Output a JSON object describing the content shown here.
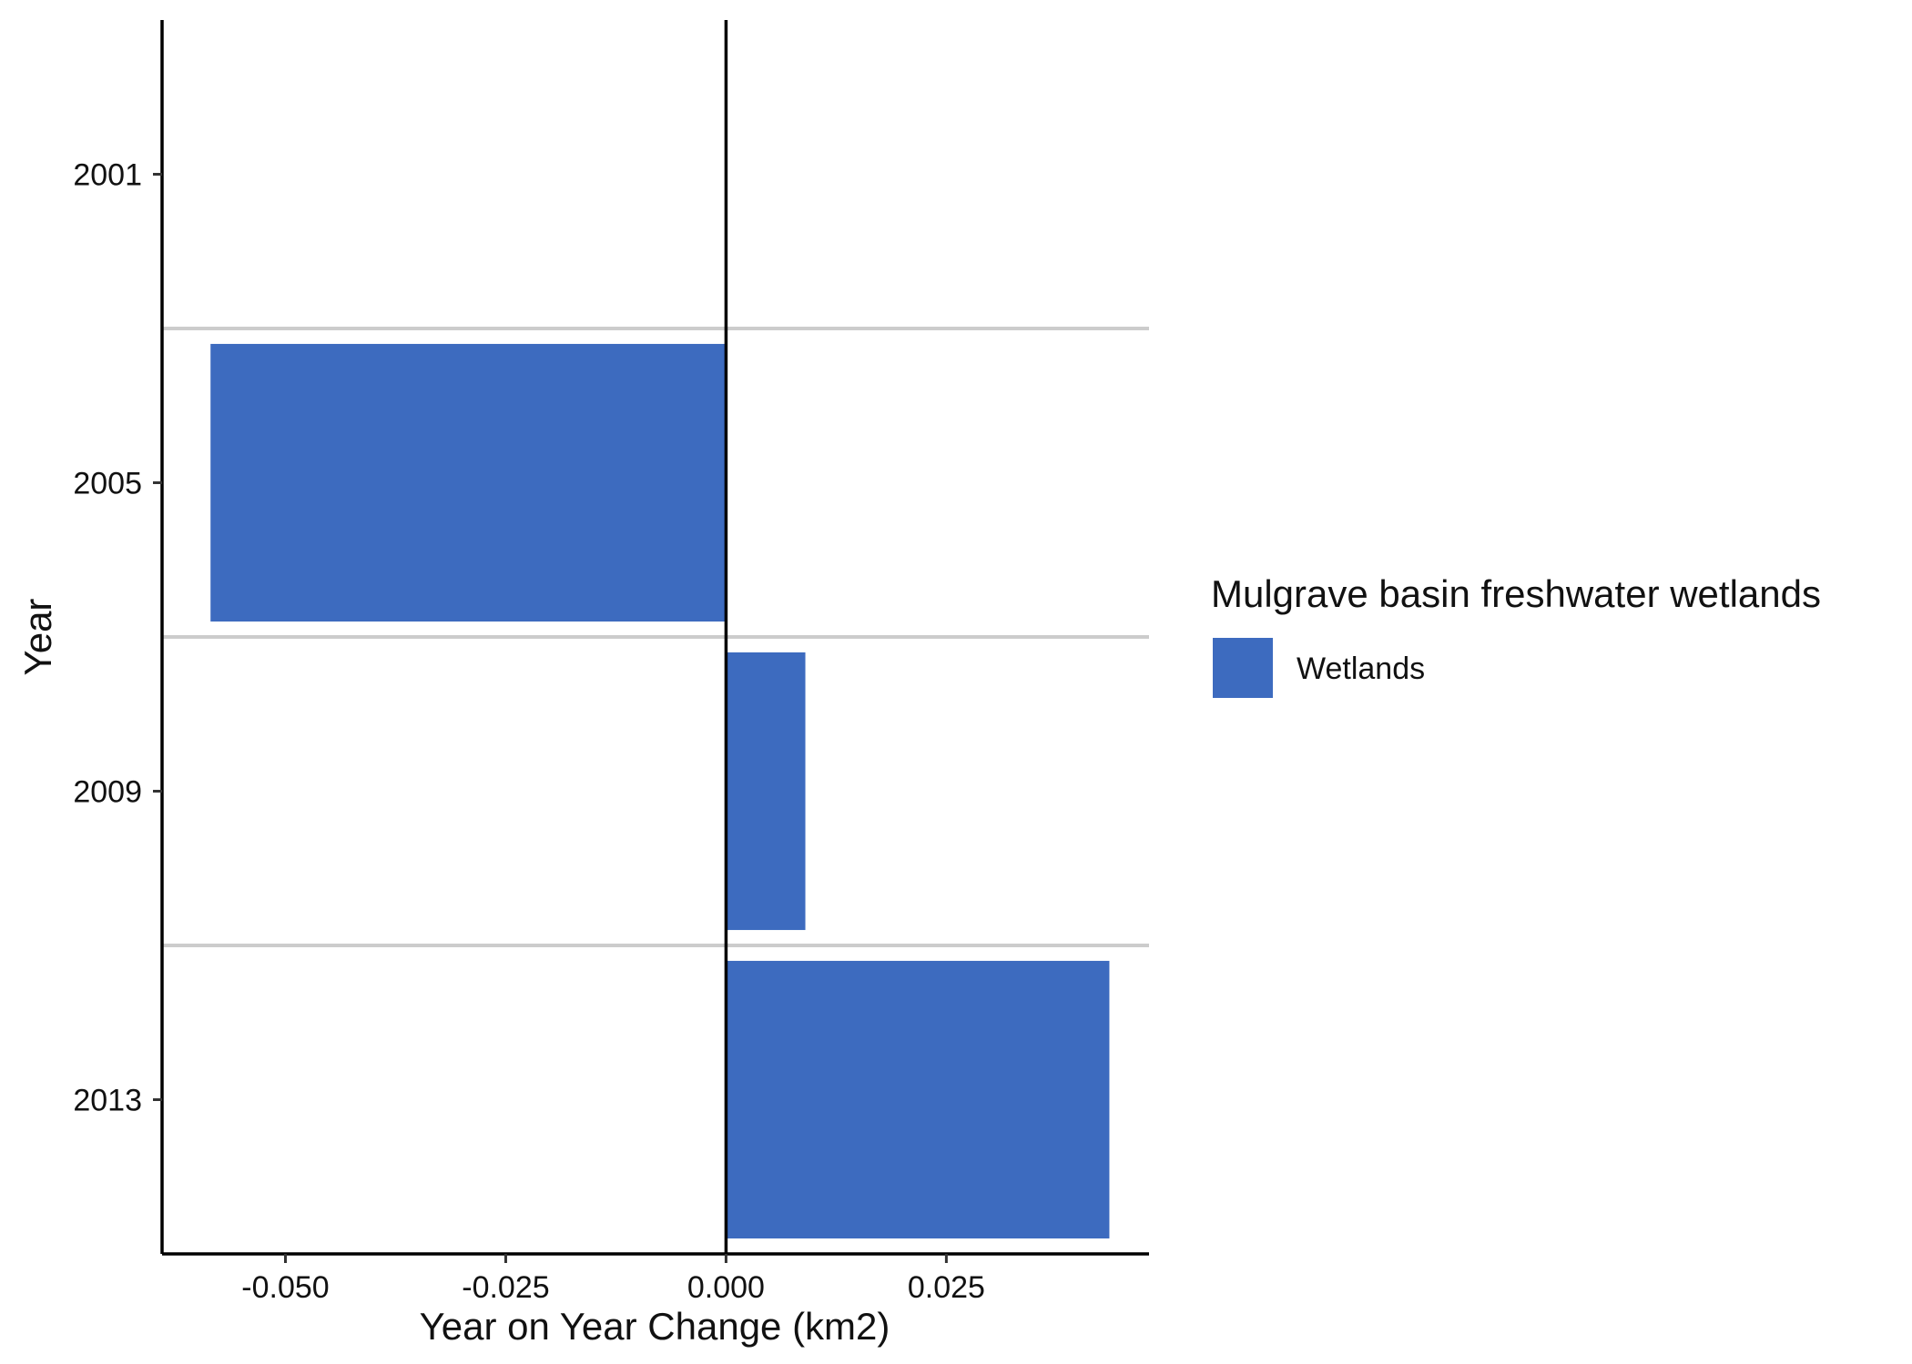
{
  "chart_data": {
    "type": "bar",
    "orientation": "horizontal",
    "categories": [
      "2001",
      "2005",
      "2009",
      "2013"
    ],
    "series": [
      {
        "name": "Wetlands",
        "values": [
          0,
          -0.0585,
          0.009,
          0.0435
        ]
      }
    ],
    "xlabel": "Year on Year Change (km2)",
    "ylabel": "Year",
    "xlim": [
      -0.064,
      0.048
    ],
    "xticks": [
      -0.05,
      -0.025,
      0.0,
      0.025
    ],
    "xtick_labels": [
      "-0.050",
      "-0.025",
      "0.000",
      "0.025"
    ],
    "legend": {
      "title": "Mulgrave basin freshwater wetlands",
      "entries": [
        "Wetlands"
      ],
      "placement": "right"
    },
    "grid": {
      "horizontal_separators": true,
      "vertical": false
    },
    "colors": {
      "bar": "#3d6bbf",
      "separator": "#cccccc",
      "axis": "#000000"
    }
  }
}
